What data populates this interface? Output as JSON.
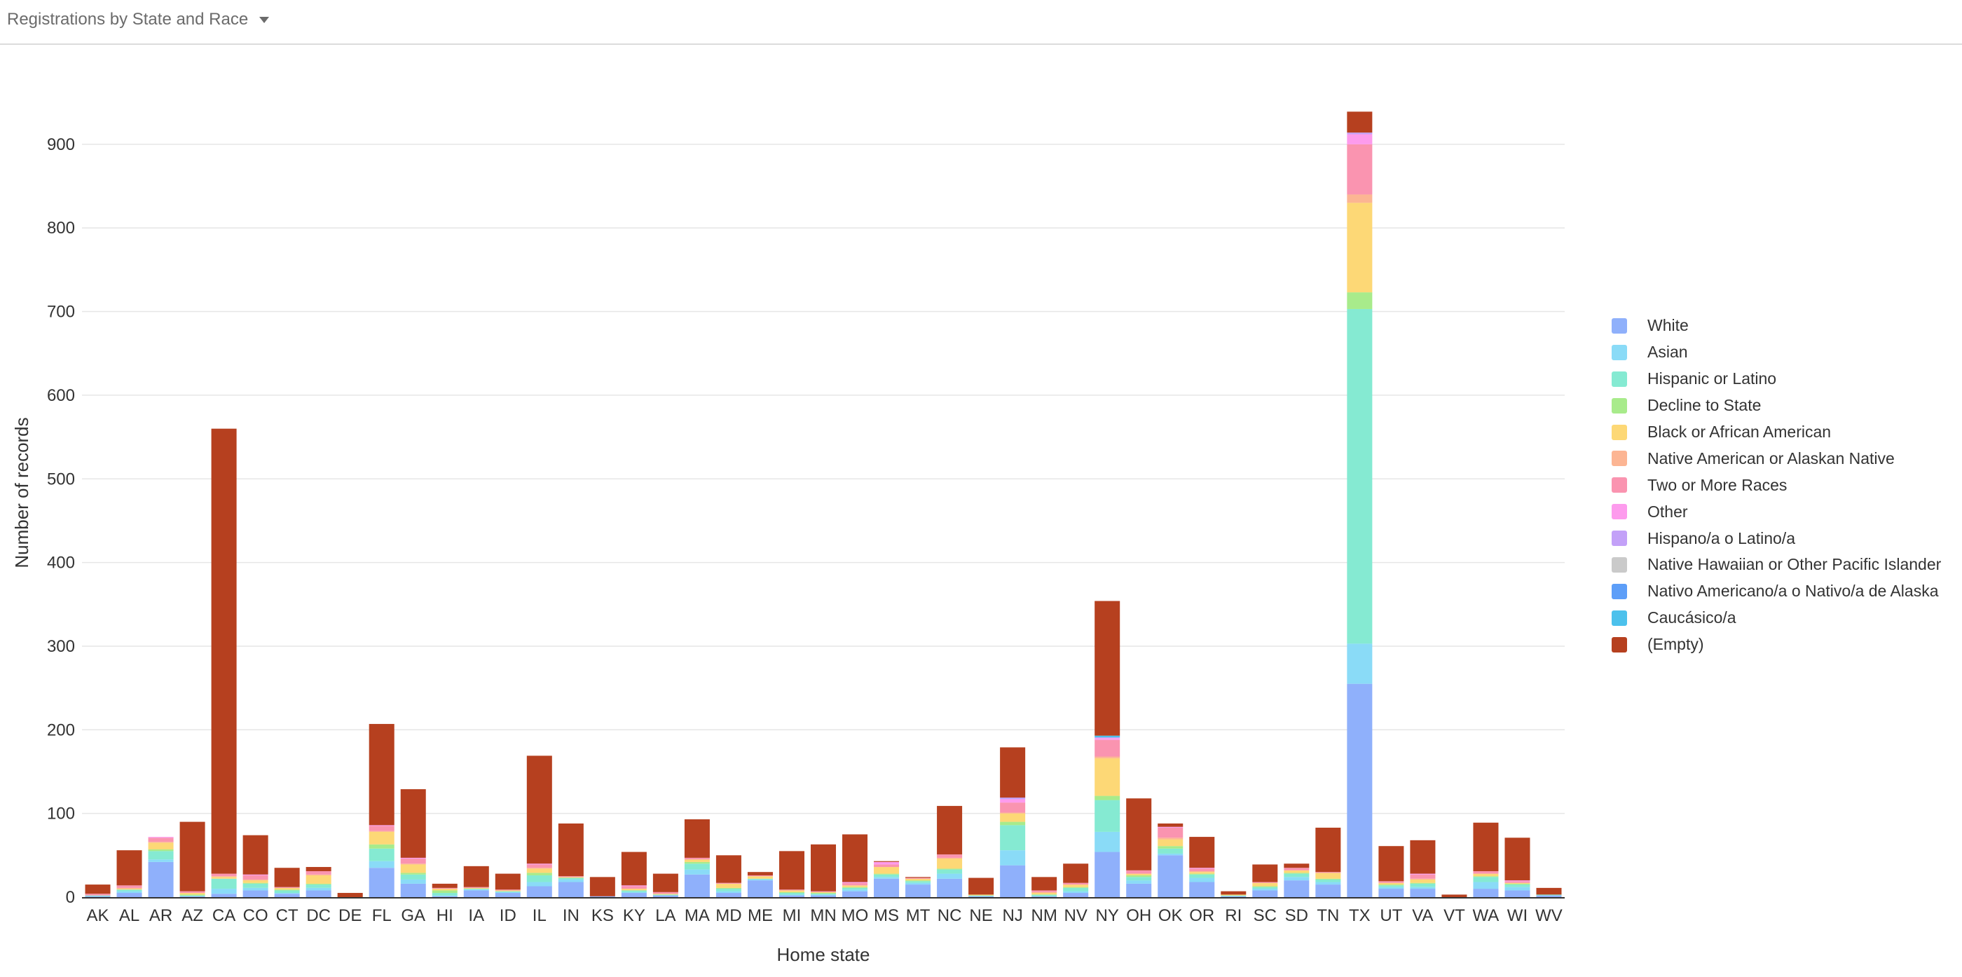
{
  "header": {
    "title": "Registrations by State and Race"
  },
  "chart_data": {
    "type": "bar",
    "stacked": true,
    "xlabel": "Home state",
    "ylabel": "Number of records",
    "ylim": [
      0,
      940
    ],
    "yticks": [
      0,
      100,
      200,
      300,
      400,
      500,
      600,
      700,
      800,
      900
    ],
    "grid": true,
    "legend_position": "right",
    "categories": [
      "AK",
      "AL",
      "AR",
      "AZ",
      "CA",
      "CO",
      "CT",
      "DC",
      "DE",
      "FL",
      "GA",
      "HI",
      "IA",
      "ID",
      "IL",
      "IN",
      "KS",
      "KY",
      "LA",
      "MA",
      "MD",
      "ME",
      "MI",
      "MN",
      "MO",
      "MS",
      "MT",
      "NC",
      "NE",
      "NJ",
      "NM",
      "NV",
      "NY",
      "OH",
      "OK",
      "OR",
      "RI",
      "SC",
      "SD",
      "TN",
      "TX",
      "UT",
      "VA",
      "VT",
      "WA",
      "WI",
      "WV"
    ],
    "series": [
      {
        "name": "White",
        "color": "#8fb0fb",
        "values": [
          1,
          5,
          42,
          1,
          4,
          8,
          4,
          8,
          0,
          35,
          16,
          1,
          8,
          5,
          13,
          18,
          1,
          5,
          2,
          27,
          5,
          20,
          2,
          2,
          7,
          22,
          15,
          22,
          1,
          38,
          1,
          5,
          54,
          16,
          50,
          18,
          1,
          8,
          20,
          15,
          255,
          10,
          10,
          0,
          10,
          8,
          2
        ]
      },
      {
        "name": "Asian",
        "color": "#8adbf7",
        "values": [
          0,
          2,
          3,
          0,
          6,
          3,
          1,
          3,
          0,
          8,
          5,
          1,
          1,
          1,
          5,
          3,
          0,
          1,
          0,
          6,
          2,
          1,
          1,
          1,
          2,
          2,
          2,
          6,
          0,
          18,
          0,
          2,
          24,
          4,
          2,
          5,
          0,
          2,
          4,
          3,
          48,
          2,
          2,
          0,
          8,
          4,
          0
        ]
      },
      {
        "name": "Hispanic or Latino",
        "color": "#85ead2",
        "values": [
          1,
          2,
          10,
          1,
          12,
          5,
          3,
          4,
          0,
          15,
          6,
          3,
          1,
          1,
          8,
          2,
          0,
          2,
          1,
          7,
          3,
          1,
          2,
          1,
          2,
          3,
          2,
          5,
          1,
          30,
          2,
          4,
          38,
          4,
          6,
          4,
          1,
          2,
          4,
          3,
          400,
          2,
          4,
          0,
          6,
          3,
          1
        ]
      },
      {
        "name": "Decline to State",
        "color": "#a8eb8b",
        "values": [
          0,
          0,
          2,
          1,
          0,
          1,
          1,
          1,
          0,
          5,
          2,
          3,
          0,
          0,
          3,
          0,
          0,
          0,
          0,
          2,
          1,
          0,
          1,
          1,
          1,
          1,
          1,
          1,
          0,
          4,
          0,
          1,
          5,
          2,
          3,
          1,
          0,
          1,
          1,
          1,
          20,
          1,
          1,
          0,
          1,
          1,
          0
        ]
      },
      {
        "name": "Black or African American",
        "color": "#fdd876",
        "values": [
          0,
          1,
          8,
          2,
          2,
          3,
          2,
          10,
          0,
          15,
          10,
          2,
          1,
          1,
          5,
          1,
          0,
          2,
          1,
          3,
          5,
          3,
          2,
          1,
          2,
          8,
          2,
          12,
          1,
          10,
          2,
          3,
          45,
          2,
          8,
          2,
          1,
          4,
          3,
          7,
          107,
          2,
          4,
          0,
          3,
          1,
          0
        ]
      },
      {
        "name": "Native American or Alaskan Native",
        "color": "#fcb593",
        "values": [
          0,
          1,
          1,
          0,
          1,
          1,
          0,
          1,
          0,
          1,
          1,
          0,
          0,
          0,
          1,
          0,
          0,
          0,
          0,
          0,
          0,
          0,
          0,
          0,
          0,
          0,
          0,
          1,
          0,
          1,
          1,
          0,
          2,
          0,
          2,
          1,
          0,
          0,
          0,
          0,
          10,
          0,
          1,
          0,
          0,
          0,
          0
        ]
      },
      {
        "name": "Two or More Races",
        "color": "#fa94b0",
        "values": [
          2,
          3,
          5,
          2,
          3,
          5,
          1,
          4,
          0,
          6,
          6,
          1,
          1,
          1,
          4,
          1,
          0,
          3,
          2,
          2,
          1,
          1,
          1,
          1,
          3,
          3,
          1,
          4,
          0,
          12,
          2,
          2,
          20,
          4,
          12,
          3,
          0,
          1,
          3,
          1,
          60,
          2,
          5,
          0,
          3,
          2,
          0
        ]
      },
      {
        "name": "Other",
        "color": "#fd9bed",
        "values": [
          0,
          0,
          1,
          0,
          0,
          1,
          0,
          0,
          0,
          1,
          1,
          0,
          0,
          0,
          1,
          0,
          0,
          1,
          0,
          0,
          0,
          0,
          0,
          0,
          1,
          3,
          0,
          0,
          0,
          4,
          0,
          0,
          2,
          0,
          1,
          1,
          0,
          0,
          0,
          0,
          12,
          0,
          1,
          0,
          0,
          1,
          0
        ]
      },
      {
        "name": "Hispano/a o Latino/a",
        "color": "#c3a1f8",
        "values": [
          0,
          0,
          0,
          0,
          0,
          0,
          0,
          0,
          0,
          0,
          0,
          0,
          0,
          0,
          0,
          0,
          0,
          0,
          0,
          0,
          0,
          0,
          0,
          0,
          0,
          0,
          0,
          0,
          0,
          2,
          0,
          0,
          1,
          0,
          0,
          0,
          0,
          0,
          0,
          0,
          2,
          0,
          0,
          0,
          0,
          0,
          0
        ]
      },
      {
        "name": "Native Hawaiian or Other Pacific Islander",
        "color": "#cacaca",
        "values": [
          0,
          0,
          0,
          0,
          0,
          0,
          0,
          0,
          0,
          0,
          0,
          0,
          0,
          0,
          0,
          0,
          0,
          0,
          0,
          0,
          0,
          0,
          0,
          0,
          0,
          0,
          0,
          0,
          0,
          0,
          0,
          0,
          0,
          0,
          0,
          0,
          0,
          0,
          0,
          0,
          0,
          0,
          0,
          0,
          0,
          0,
          0
        ]
      },
      {
        "name": "Nativo Americano/a o Nativo/a de Alaska",
        "color": "#5d9ef8",
        "values": [
          0,
          0,
          0,
          0,
          0,
          0,
          0,
          0,
          0,
          0,
          0,
          0,
          0,
          0,
          0,
          0,
          0,
          0,
          0,
          0,
          0,
          0,
          0,
          0,
          0,
          0,
          0,
          0,
          0,
          0,
          0,
          0,
          0,
          0,
          0,
          0,
          0,
          0,
          0,
          0,
          0,
          0,
          0,
          0,
          0,
          0,
          0
        ]
      },
      {
        "name": "Caucásico/a",
        "color": "#4cc1ec",
        "values": [
          0,
          0,
          0,
          0,
          0,
          0,
          0,
          0,
          0,
          0,
          0,
          0,
          0,
          0,
          0,
          0,
          0,
          0,
          0,
          0,
          0,
          0,
          0,
          0,
          0,
          0,
          0,
          0,
          0,
          0,
          0,
          0,
          2,
          0,
          0,
          0,
          0,
          0,
          0,
          0,
          0,
          0,
          0,
          0,
          0,
          0,
          0
        ]
      },
      {
        "name": "(Empty)",
        "color": "#b6401f",
        "values": [
          11,
          42,
          0,
          83,
          532,
          47,
          23,
          5,
          5,
          121,
          82,
          5,
          25,
          19,
          129,
          63,
          23,
          40,
          22,
          46,
          33,
          4,
          46,
          56,
          57,
          1,
          1,
          58,
          20,
          60,
          16,
          23,
          161,
          86,
          4,
          37,
          4,
          21,
          5,
          53,
          25,
          42,
          40,
          3,
          58,
          51,
          8
        ]
      }
    ]
  }
}
